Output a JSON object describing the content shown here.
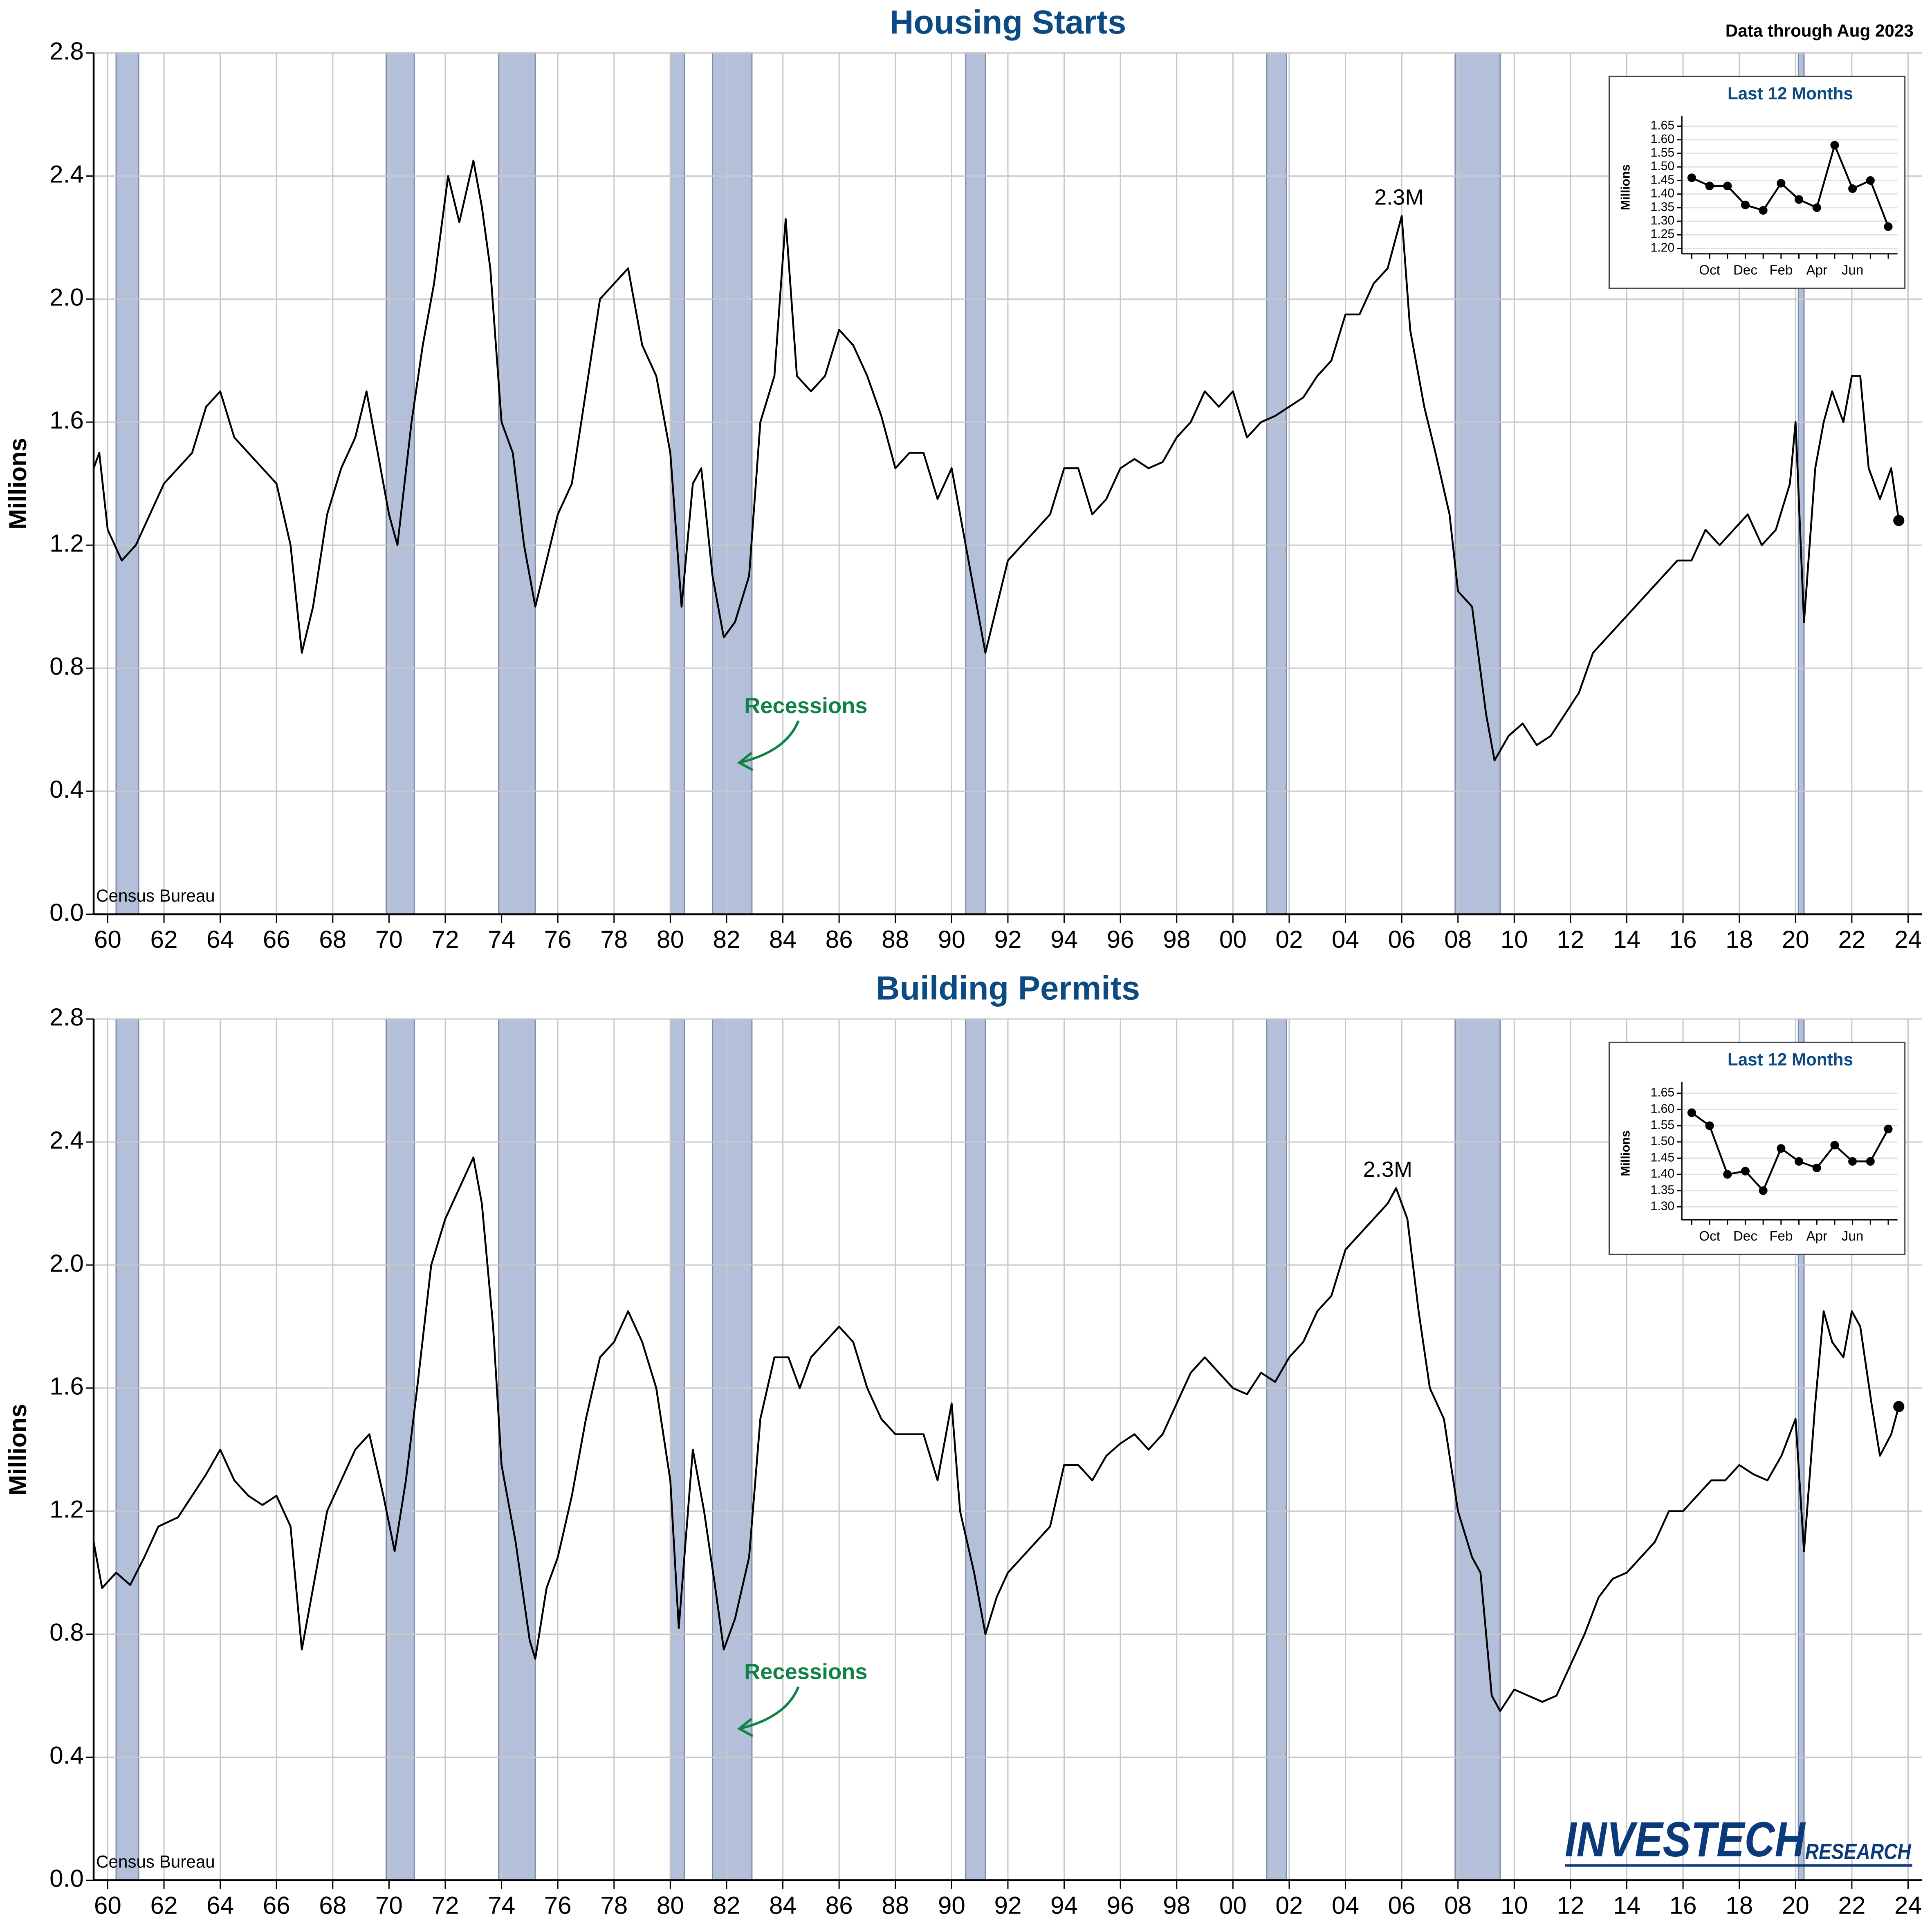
{
  "note": "Data through Aug 2023",
  "logo": {
    "name": "INVESTECH",
    "sub": "RESEARCH"
  },
  "chart_data": [
    {
      "type": "line",
      "title": "Housing Starts",
      "ylabel": "Millions",
      "source": "Census Bureau",
      "callout": "Recessions",
      "annotations": [
        {
          "text": "2.3M",
          "x": 2005.9,
          "y": 2.27
        }
      ],
      "xlim": [
        1959.5,
        2024.5
      ],
      "ylim": [
        0,
        2.8
      ],
      "yticks": [
        {
          "value": 0,
          "label": "0.0"
        },
        0.4,
        0.8,
        1.2,
        1.6,
        {
          "value": 2,
          "label": "2.0"
        },
        2.4,
        2.8
      ],
      "xticks": [
        {
          "value": 1960,
          "label": "60"
        },
        {
          "value": 1962,
          "label": "62"
        },
        {
          "value": 1964,
          "label": "64"
        },
        {
          "value": 1966,
          "label": "66"
        },
        {
          "value": 1968,
          "label": "68"
        },
        {
          "value": 1970,
          "label": "70"
        },
        {
          "value": 1972,
          "label": "72"
        },
        {
          "value": 1974,
          "label": "74"
        },
        {
          "value": 1976,
          "label": "76"
        },
        {
          "value": 1978,
          "label": "78"
        },
        {
          "value": 1980,
          "label": "80"
        },
        {
          "value": 1982,
          "label": "82"
        },
        {
          "value": 1984,
          "label": "84"
        },
        {
          "value": 1986,
          "label": "86"
        },
        {
          "value": 1988,
          "label": "88"
        },
        {
          "value": 1990,
          "label": "90"
        },
        {
          "value": 1992,
          "label": "92"
        },
        {
          "value": 1994,
          "label": "94"
        },
        {
          "value": 1996,
          "label": "96"
        },
        {
          "value": 1998,
          "label": "98"
        },
        {
          "value": 2000,
          "label": "00"
        },
        {
          "value": 2002,
          "label": "02"
        },
        {
          "value": 2004,
          "label": "04"
        },
        {
          "value": 2006,
          "label": "06"
        },
        {
          "value": 2008,
          "label": "08"
        },
        {
          "value": 2010,
          "label": "10"
        },
        {
          "value": 2012,
          "label": "12"
        },
        {
          "value": 2014,
          "label": "14"
        },
        {
          "value": 2016,
          "label": "16"
        },
        {
          "value": 2018,
          "label": "18"
        },
        {
          "value": 2020,
          "label": "20"
        },
        {
          "value": 2022,
          "label": "22"
        },
        {
          "value": 2024,
          "label": "24"
        }
      ],
      "grid": true,
      "color": "#000000",
      "recession_color": "#b4c0da",
      "recessions": [
        [
          1960.3,
          1961.1
        ],
        [
          1969.9,
          1970.9
        ],
        [
          1973.9,
          1975.2
        ],
        [
          1980.0,
          1980.5
        ],
        [
          1981.5,
          1982.9
        ],
        [
          1990.5,
          1991.2
        ],
        [
          2001.2,
          2001.9
        ],
        [
          2007.9,
          2009.5
        ],
        [
          2020.1,
          2020.3
        ]
      ],
      "x": [
        1959.5,
        1959.7,
        1960.0,
        1960.5,
        1961.0,
        1961.5,
        1962.0,
        1962.5,
        1963.0,
        1963.5,
        1964.0,
        1964.5,
        1965.0,
        1965.5,
        1966.0,
        1966.5,
        1966.9,
        1967.3,
        1967.8,
        1968.3,
        1968.8,
        1969.2,
        1969.6,
        1970.0,
        1970.3,
        1970.8,
        1971.2,
        1971.6,
        1972.1,
        1972.5,
        1973.0,
        1973.3,
        1973.6,
        1974.0,
        1974.4,
        1974.8,
        1975.2,
        1975.6,
        1976.0,
        1976.5,
        1977.0,
        1977.5,
        1978.0,
        1978.5,
        1979.0,
        1979.5,
        1980.0,
        1980.4,
        1980.8,
        1981.1,
        1981.5,
        1981.9,
        1982.3,
        1982.8,
        1983.2,
        1983.7,
        1984.1,
        1984.5,
        1985.0,
        1985.5,
        1986.0,
        1986.5,
        1987.0,
        1987.5,
        1988.0,
        1988.5,
        1989.0,
        1989.5,
        1990.0,
        1990.5,
        1991.0,
        1991.2,
        1991.6,
        1992.0,
        1992.5,
        1993.0,
        1993.5,
        1994.0,
        1994.5,
        1995.0,
        1995.5,
        1996.0,
        1996.5,
        1997.0,
        1997.5,
        1998.0,
        1998.5,
        1999.0,
        1999.5,
        2000.0,
        2000.5,
        2001.0,
        2001.5,
        2002.0,
        2002.5,
        2003.0,
        2003.5,
        2004.0,
        2004.5,
        2005.0,
        2005.5,
        2006.0,
        2006.3,
        2006.8,
        2007.2,
        2007.7,
        2008.0,
        2008.5,
        2009.0,
        2009.3,
        2009.8,
        2010.3,
        2010.8,
        2011.3,
        2011.8,
        2012.3,
        2012.8,
        2013.3,
        2013.8,
        2014.3,
        2014.8,
        2015.3,
        2015.8,
        2016.3,
        2016.8,
        2017.3,
        2017.8,
        2018.3,
        2018.8,
        2019.3,
        2019.8,
        2020.0,
        2020.3,
        2020.7,
        2021.0,
        2021.3,
        2021.7,
        2022.0,
        2022.3,
        2022.6,
        2023.0,
        2023.4,
        2023.67
      ],
      "values": [
        1.45,
        1.5,
        1.25,
        1.15,
        1.2,
        1.3,
        1.4,
        1.45,
        1.5,
        1.65,
        1.7,
        1.55,
        1.5,
        1.45,
        1.4,
        1.2,
        0.85,
        1.0,
        1.3,
        1.45,
        1.55,
        1.7,
        1.5,
        1.3,
        1.2,
        1.6,
        1.85,
        2.05,
        2.4,
        2.25,
        2.45,
        2.3,
        2.1,
        1.6,
        1.5,
        1.2,
        1.0,
        1.15,
        1.3,
        1.4,
        1.7,
        2.0,
        2.05,
        2.1,
        1.85,
        1.75,
        1.5,
        1.0,
        1.4,
        1.45,
        1.1,
        0.9,
        0.95,
        1.1,
        1.6,
        1.75,
        2.26,
        1.75,
        1.7,
        1.75,
        1.9,
        1.85,
        1.75,
        1.62,
        1.45,
        1.5,
        1.5,
        1.35,
        1.45,
        1.2,
        0.95,
        0.85,
        1.0,
        1.15,
        1.2,
        1.25,
        1.3,
        1.45,
        1.45,
        1.3,
        1.35,
        1.45,
        1.48,
        1.45,
        1.47,
        1.55,
        1.6,
        1.7,
        1.65,
        1.7,
        1.55,
        1.6,
        1.62,
        1.65,
        1.68,
        1.75,
        1.8,
        1.95,
        1.95,
        2.05,
        2.1,
        2.27,
        1.9,
        1.65,
        1.5,
        1.3,
        1.05,
        1.0,
        0.65,
        0.5,
        0.58,
        0.62,
        0.55,
        0.58,
        0.65,
        0.72,
        0.85,
        0.9,
        0.95,
        1.0,
        1.05,
        1.1,
        1.15,
        1.15,
        1.25,
        1.2,
        1.25,
        1.3,
        1.2,
        1.25,
        1.4,
        1.6,
        0.95,
        1.45,
        1.6,
        1.7,
        1.6,
        1.75,
        1.75,
        1.45,
        1.35,
        1.45,
        1.28
      ],
      "inset": {
        "title": "Last 12 Months",
        "ylabel": "Millions",
        "categories": [
          null,
          "Oct",
          null,
          "Dec",
          null,
          "Feb",
          null,
          "Apr",
          null,
          "Jun",
          null,
          null
        ],
        "values": [
          1.46,
          1.43,
          1.43,
          1.36,
          1.34,
          1.44,
          1.38,
          1.35,
          1.58,
          1.42,
          1.45,
          1.28
        ],
        "ylim": [
          1.18,
          1.67
        ],
        "yticks": [
          {
            "value": 1.2,
            "label": "1.20"
          },
          1.25,
          {
            "value": 1.3,
            "label": "1.30"
          },
          1.35,
          {
            "value": 1.4,
            "label": "1.40"
          },
          1.45,
          {
            "value": 1.5,
            "label": "1.50"
          },
          1.55,
          {
            "value": 1.6,
            "label": "1.60"
          },
          1.65
        ]
      }
    },
    {
      "type": "line",
      "title": "Building Permits",
      "ylabel": "Millions",
      "source": "Census Bureau",
      "callout": "Recessions",
      "annotations": [
        {
          "text": "2.3M",
          "x": 2005.5,
          "y": 2.25
        }
      ],
      "xlim": [
        1959.5,
        2024.5
      ],
      "ylim": [
        0,
        2.8
      ],
      "yticks": [
        {
          "value": 0,
          "label": "0.0"
        },
        0.4,
        0.8,
        1.2,
        1.6,
        {
          "value": 2,
          "label": "2.0"
        },
        2.4,
        2.8
      ],
      "xticks": [
        {
          "value": 1960,
          "label": "60"
        },
        {
          "value": 1962,
          "label": "62"
        },
        {
          "value": 1964,
          "label": "64"
        },
        {
          "value": 1966,
          "label": "66"
        },
        {
          "value": 1968,
          "label": "68"
        },
        {
          "value": 1970,
          "label": "70"
        },
        {
          "value": 1972,
          "label": "72"
        },
        {
          "value": 1974,
          "label": "74"
        },
        {
          "value": 1976,
          "label": "76"
        },
        {
          "value": 1978,
          "label": "78"
        },
        {
          "value": 1980,
          "label": "80"
        },
        {
          "value": 1982,
          "label": "82"
        },
        {
          "value": 1984,
          "label": "84"
        },
        {
          "value": 1986,
          "label": "86"
        },
        {
          "value": 1988,
          "label": "88"
        },
        {
          "value": 1990,
          "label": "90"
        },
        {
          "value": 1992,
          "label": "92"
        },
        {
          "value": 1994,
          "label": "94"
        },
        {
          "value": 1996,
          "label": "96"
        },
        {
          "value": 1998,
          "label": "98"
        },
        {
          "value": 2000,
          "label": "00"
        },
        {
          "value": 2002,
          "label": "02"
        },
        {
          "value": 2004,
          "label": "04"
        },
        {
          "value": 2006,
          "label": "06"
        },
        {
          "value": 2008,
          "label": "08"
        },
        {
          "value": 2010,
          "label": "10"
        },
        {
          "value": 2012,
          "label": "12"
        },
        {
          "value": 2014,
          "label": "14"
        },
        {
          "value": 2016,
          "label": "16"
        },
        {
          "value": 2018,
          "label": "18"
        },
        {
          "value": 2020,
          "label": "20"
        },
        {
          "value": 2022,
          "label": "22"
        },
        {
          "value": 2024,
          "label": "24"
        }
      ],
      "grid": true,
      "color": "#000000",
      "recession_color": "#b4c0da",
      "recessions": [
        [
          1960.3,
          1961.1
        ],
        [
          1969.9,
          1970.9
        ],
        [
          1973.9,
          1975.2
        ],
        [
          1980.0,
          1980.5
        ],
        [
          1981.5,
          1982.9
        ],
        [
          1990.5,
          1991.2
        ],
        [
          2001.2,
          2001.9
        ],
        [
          2007.9,
          2009.5
        ],
        [
          2020.1,
          2020.3
        ]
      ],
      "x": [
        1959.5,
        1959.8,
        1960.3,
        1960.8,
        1961.3,
        1961.8,
        1962.5,
        1963.0,
        1963.5,
        1964.0,
        1964.5,
        1965.0,
        1965.5,
        1966.0,
        1966.5,
        1966.9,
        1967.3,
        1967.8,
        1968.3,
        1968.8,
        1969.3,
        1969.8,
        1970.2,
        1970.6,
        1971.0,
        1971.5,
        1972.0,
        1972.5,
        1973.0,
        1973.3,
        1973.7,
        1974.0,
        1974.5,
        1975.0,
        1975.2,
        1975.6,
        1976.0,
        1976.5,
        1977.0,
        1977.5,
        1978.0,
        1978.5,
        1979.0,
        1979.5,
        1980.0,
        1980.3,
        1980.8,
        1981.2,
        1981.6,
        1981.9,
        1982.3,
        1982.8,
        1983.2,
        1983.7,
        1984.2,
        1984.6,
        1985.0,
        1985.5,
        1986.0,
        1986.5,
        1987.0,
        1987.5,
        1988.0,
        1988.5,
        1989.0,
        1989.5,
        1990.0,
        1990.3,
        1990.8,
        1991.2,
        1991.6,
        1992.0,
        1992.5,
        1993.0,
        1993.5,
        1994.0,
        1994.5,
        1995.0,
        1995.5,
        1996.0,
        1996.5,
        1997.0,
        1997.5,
        1998.0,
        1998.5,
        1999.0,
        1999.5,
        2000.0,
        2000.5,
        2001.0,
        2001.5,
        2002.0,
        2002.5,
        2003.0,
        2003.5,
        2004.0,
        2004.5,
        2005.0,
        2005.5,
        2005.8,
        2006.2,
        2006.6,
        2007.0,
        2007.5,
        2008.0,
        2008.5,
        2008.8,
        2009.2,
        2009.5,
        2010.0,
        2010.5,
        2011.0,
        2011.5,
        2012.0,
        2012.5,
        2013.0,
        2013.5,
        2014.0,
        2014.5,
        2015.0,
        2015.5,
        2016.0,
        2016.5,
        2017.0,
        2017.5,
        2018.0,
        2018.5,
        2019.0,
        2019.5,
        2020.0,
        2020.3,
        2020.7,
        2021.0,
        2021.3,
        2021.7,
        2022.0,
        2022.3,
        2022.7,
        2023.0,
        2023.4,
        2023.67
      ],
      "values": [
        1.1,
        0.95,
        1.0,
        0.96,
        1.05,
        1.15,
        1.18,
        1.25,
        1.32,
        1.4,
        1.3,
        1.25,
        1.22,
        1.25,
        1.15,
        0.75,
        0.95,
        1.2,
        1.3,
        1.4,
        1.45,
        1.25,
        1.07,
        1.3,
        1.6,
        2.0,
        2.15,
        2.25,
        2.35,
        2.2,
        1.8,
        1.35,
        1.1,
        0.78,
        0.72,
        0.95,
        1.05,
        1.25,
        1.5,
        1.7,
        1.75,
        1.85,
        1.75,
        1.6,
        1.3,
        0.82,
        1.4,
        1.2,
        0.95,
        0.75,
        0.85,
        1.05,
        1.5,
        1.7,
        1.7,
        1.6,
        1.7,
        1.75,
        1.8,
        1.75,
        1.6,
        1.5,
        1.45,
        1.45,
        1.45,
        1.3,
        1.55,
        1.2,
        1.0,
        0.8,
        0.92,
        1.0,
        1.05,
        1.1,
        1.15,
        1.35,
        1.35,
        1.3,
        1.38,
        1.42,
        1.45,
        1.4,
        1.45,
        1.55,
        1.65,
        1.7,
        1.65,
        1.6,
        1.58,
        1.65,
        1.62,
        1.7,
        1.75,
        1.85,
        1.9,
        2.05,
        2.1,
        2.15,
        2.2,
        2.25,
        2.15,
        1.85,
        1.6,
        1.5,
        1.2,
        1.05,
        1.0,
        0.6,
        0.55,
        0.62,
        0.6,
        0.58,
        0.6,
        0.7,
        0.8,
        0.92,
        0.98,
        1.0,
        1.05,
        1.1,
        1.2,
        1.2,
        1.25,
        1.3,
        1.3,
        1.35,
        1.32,
        1.3,
        1.38,
        1.5,
        1.07,
        1.55,
        1.85,
        1.75,
        1.7,
        1.85,
        1.8,
        1.55,
        1.38,
        1.45,
        1.54
      ],
      "inset": {
        "title": "Last 12 Months",
        "ylabel": "Millions",
        "categories": [
          null,
          "Oct",
          null,
          "Dec",
          null,
          "Feb",
          null,
          "Apr",
          null,
          "Jun",
          null,
          null
        ],
        "values": [
          1.59,
          1.55,
          1.4,
          1.41,
          1.35,
          1.48,
          1.44,
          1.42,
          1.49,
          1.44,
          1.44,
          1.54
        ],
        "ylim": [
          1.26,
          1.67
        ],
        "yticks": [
          {
            "value": 1.3,
            "label": "1.30"
          },
          1.35,
          {
            "value": 1.4,
            "label": "1.40"
          },
          1.45,
          {
            "value": 1.5,
            "label": "1.50"
          },
          1.55,
          {
            "value": 1.6,
            "label": "1.60"
          },
          1.65
        ]
      }
    }
  ]
}
